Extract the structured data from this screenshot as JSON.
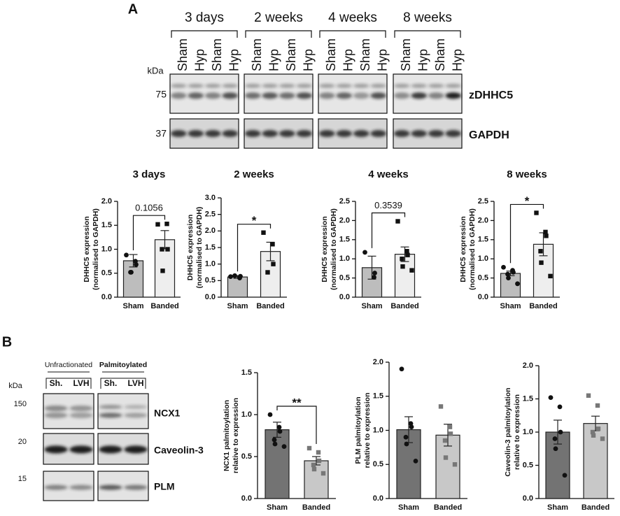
{
  "blots_a": {
    "panel": "A",
    "kda": "kDa",
    "groups": [
      {
        "label": "3 days",
        "lanes": [
          "Sham",
          "Hyp",
          "Sham",
          "Hyp"
        ]
      },
      {
        "label": "2 weeks",
        "lanes": [
          "Sham",
          "Hyp",
          "Sham",
          "Hyp"
        ]
      },
      {
        "label": "4 weeks",
        "lanes": [
          "Sham",
          "Hyp",
          "Sham",
          "Hyp"
        ]
      },
      {
        "label": "8 weeks",
        "lanes": [
          "Sham",
          "Hyp",
          "Sham",
          "Hyp"
        ]
      }
    ],
    "markers": [
      "75",
      "37"
    ],
    "proteins": [
      "zDHHC5",
      "GAPDH"
    ]
  },
  "blots_b": {
    "panel": "B",
    "kda": "kDa",
    "groups": [
      {
        "label": "Unfractionated",
        "lanes": [
          "Sh.",
          "LVH"
        ]
      },
      {
        "label": "Palmitoylated",
        "lanes": [
          "Sh.",
          "LVH"
        ]
      }
    ],
    "markers": [
      "150",
      "20",
      "15"
    ],
    "proteins": [
      "NCX1",
      "Caveolin-3",
      "PLM"
    ]
  },
  "chart_data": [
    {
      "type": "bar",
      "title": "3 days",
      "ylabel": [
        "DHHC5 expression",
        "(normalised to GAPDH)"
      ],
      "categories": [
        "Sham",
        "Banded"
      ],
      "values": [
        0.76,
        1.2
      ],
      "errors": [
        0.13,
        0.19
      ],
      "points": [
        [
          0.88,
          0.75,
          0.68,
          0.52,
          0.52
        ],
        [
          1.52,
          1.53,
          1.0,
          1.0,
          0.55
        ]
      ],
      "colors": [
        "#bdbdbd",
        "#eeeeee"
      ],
      "markers": [
        "circle",
        "square"
      ],
      "annotation": "0.1056",
      "ylim": [
        0,
        2.0
      ],
      "yticks": [
        {
          "value": 0,
          "label": "0.0"
        },
        {
          "value": 0.5,
          "label": "0.5"
        },
        {
          "value": 1,
          "label": "1.0"
        },
        {
          "value": 1.5,
          "label": "1.5"
        },
        {
          "value": 2,
          "label": "2.0"
        }
      ]
    },
    {
      "type": "bar",
      "title": "2 weeks",
      "ylabel": [
        "DHHC5 expression",
        "(normalised to GAPDH)"
      ],
      "categories": [
        "Sham",
        "Banded"
      ],
      "values": [
        0.61,
        1.38
      ],
      "errors": [
        0.04,
        0.28
      ],
      "points": [
        [
          0.62,
          0.58,
          0.63,
          0.65
        ],
        [
          1.95,
          1.6,
          1.0,
          0.75
        ]
      ],
      "colors": [
        "#bdbdbd",
        "#eeeeee"
      ],
      "markers": [
        "circle",
        "square"
      ],
      "annotation": "*",
      "ylim": [
        0,
        3.0
      ],
      "yticks": [
        {
          "value": 0,
          "label": "0.0"
        },
        {
          "value": 0.5,
          "label": "0.5"
        },
        {
          "value": 1,
          "label": "1.0"
        },
        {
          "value": 1.5,
          "label": "1.5"
        },
        {
          "value": 2,
          "label": "2.0"
        },
        {
          "value": 2.5,
          "label": "2.5"
        },
        {
          "value": 3,
          "label": "3.0"
        }
      ]
    },
    {
      "type": "bar",
      "title": "4 weeks",
      "ylabel": [
        "DHHC5 expression",
        "(normalised to GAPDH)"
      ],
      "categories": [
        "Sham",
        "Banded"
      ],
      "values": [
        0.77,
        1.12
      ],
      "errors": [
        0.3,
        0.19
      ],
      "points": [
        [
          1.17,
          0.52,
          0.63
        ],
        [
          1.98,
          1.2,
          1.1,
          1.0,
          0.8,
          0.7
        ]
      ],
      "colors": [
        "#bdbdbd",
        "#eeeeee"
      ],
      "markers": [
        "circle",
        "square"
      ],
      "annotation": "0.3539",
      "ylim": [
        0,
        2.5
      ],
      "yticks": [
        {
          "value": 0,
          "label": "0.0"
        },
        {
          "value": 0.5,
          "label": "0.5"
        },
        {
          "value": 1,
          "label": "1.0"
        },
        {
          "value": 1.5,
          "label": "1.5"
        },
        {
          "value": 2,
          "label": "2.0"
        },
        {
          "value": 2.5,
          "label": "2.5"
        }
      ]
    },
    {
      "type": "bar",
      "title": "8 weeks",
      "ylabel": [
        "DHHC5 expression",
        "(normalised to GAPDH)"
      ],
      "categories": [
        "Sham",
        "Banded"
      ],
      "values": [
        0.62,
        1.38
      ],
      "errors": [
        0.06,
        0.3
      ],
      "points": [
        [
          0.78,
          0.7,
          0.65,
          0.6,
          0.5,
          0.35
        ],
        [
          2.2,
          1.7,
          1.6,
          1.2,
          0.9,
          0.55
        ]
      ],
      "colors": [
        "#bdbdbd",
        "#eeeeee"
      ],
      "markers": [
        "circle",
        "square"
      ],
      "annotation": "*",
      "ylim": [
        0,
        2.5
      ],
      "yticks": [
        {
          "value": 0,
          "label": "0.0"
        },
        {
          "value": 0.5,
          "label": "0.5"
        },
        {
          "value": 1,
          "label": "1.0"
        },
        {
          "value": 1.5,
          "label": "1.5"
        },
        {
          "value": 2,
          "label": "2.0"
        },
        {
          "value": 2.5,
          "label": "2.5"
        }
      ]
    },
    {
      "type": "bar",
      "ylabel": [
        "NCX1 palmitoylation",
        "relative to expression"
      ],
      "categories": [
        "Sham",
        "Banded"
      ],
      "values": [
        0.82,
        0.45
      ],
      "errors": [
        0.09,
        0.05
      ],
      "points": [
        [
          1.0,
          0.85,
          0.8,
          0.7,
          0.65,
          0.62
        ],
        [
          0.6,
          0.55,
          0.45,
          0.4,
          0.35,
          0.3
        ]
      ],
      "colors": [
        "#737373",
        "#c8c8c8"
      ],
      "markers": [
        "circle",
        "square"
      ],
      "annotation": "**",
      "ylim": [
        0,
        1.5
      ],
      "yticks": [
        {
          "value": 0,
          "label": "0.0"
        },
        {
          "value": 0.5,
          "label": "0.5"
        },
        {
          "value": 1,
          "label": "1.0"
        },
        {
          "value": 1.5,
          "label": "1.5"
        }
      ]
    },
    {
      "type": "bar",
      "ylabel": [
        "PLM palmitoylation",
        "relative to expression"
      ],
      "categories": [
        "Sham",
        "Banded"
      ],
      "values": [
        1.01,
        0.93
      ],
      "errors": [
        0.19,
        0.16
      ],
      "points": [
        [
          1.9,
          1.1,
          1.05,
          0.9,
          0.8,
          0.55
        ],
        [
          1.35,
          1.05,
          0.95,
          0.85,
          0.6,
          0.5
        ]
      ],
      "colors": [
        "#737373",
        "#c8c8c8"
      ],
      "markers": [
        "circle",
        "square"
      ],
      "ylim": [
        0,
        2.0
      ],
      "yticks": [
        {
          "value": 0,
          "label": "0.0"
        },
        {
          "value": 0.5,
          "label": "0.5"
        },
        {
          "value": 1,
          "label": "1.0"
        },
        {
          "value": 1.5,
          "label": "1.5"
        },
        {
          "value": 2,
          "label": "2.0"
        }
      ]
    },
    {
      "type": "bar",
      "ylabel": [
        "Caveolin-3 palmitoylation",
        "relative to expression"
      ],
      "categories": [
        "Sham",
        "Banded"
      ],
      "values": [
        1.0,
        1.13
      ],
      "errors": [
        0.18,
        0.11
      ],
      "points": [
        [
          1.52,
          1.38,
          1.0,
          0.9,
          0.75,
          0.35
        ],
        [
          1.55,
          1.4,
          1.05,
          1.0,
          0.95,
          0.9
        ]
      ],
      "colors": [
        "#737373",
        "#c8c8c8"
      ],
      "markers": [
        "circle",
        "square"
      ],
      "ylim": [
        0,
        2.0
      ],
      "yticks": [
        {
          "value": 0,
          "label": "0.0"
        },
        {
          "value": 0.5,
          "label": "0.5"
        },
        {
          "value": 1,
          "label": "1.0"
        },
        {
          "value": 1.5,
          "label": "1.5"
        },
        {
          "value": 2,
          "label": "2.0"
        }
      ]
    }
  ]
}
